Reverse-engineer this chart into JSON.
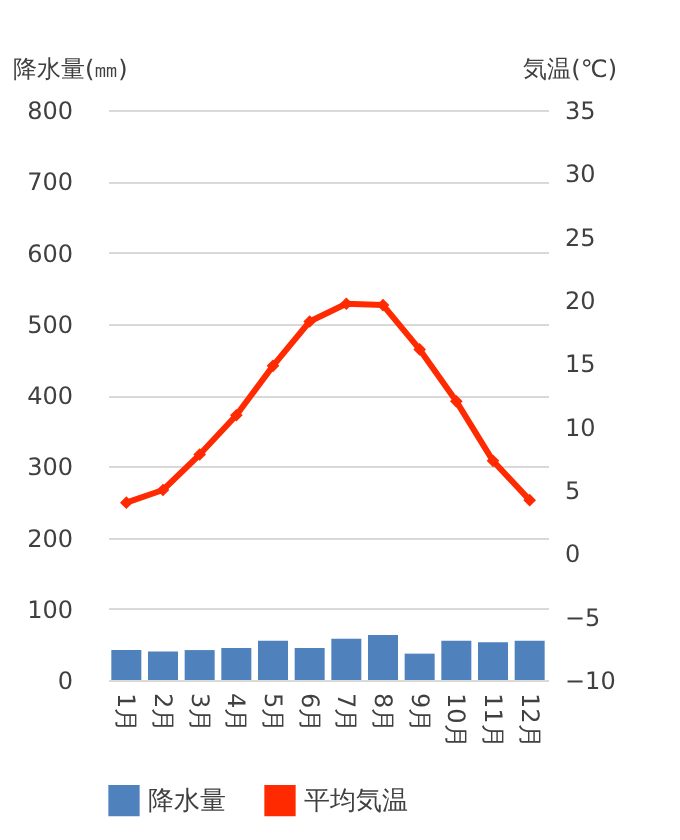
{
  "chart_data": {
    "type": "bar",
    "categories": [
      "1月",
      "2月",
      "3月",
      "4月",
      "5月",
      "6月",
      "7月",
      "8月",
      "9月",
      "10月",
      "11月",
      "12月"
    ],
    "series": [
      {
        "name": "降水量",
        "color": "#4f81bd",
        "values": [
          42,
          40,
          42,
          45,
          55,
          45,
          58,
          63,
          37,
          55,
          53,
          55
        ]
      },
      {
        "name": "平均気温",
        "type": "line",
        "axis": "y2",
        "color": "#ff2a00",
        "values": [
          4.0,
          5.0,
          7.8,
          10.9,
          14.8,
          18.3,
          19.7,
          19.6,
          16.1,
          12.0,
          7.3,
          4.2
        ]
      }
    ],
    "ylabel": "降水量(㎜)",
    "y2label": "気温(℃)",
    "ylim": [
      0,
      800
    ],
    "yticks": [
      0,
      100,
      200,
      300,
      400,
      500,
      600,
      700,
      800
    ],
    "y2lim": [
      -10,
      35
    ],
    "y2ticks": [
      -10,
      -5,
      0,
      5,
      10,
      15,
      20,
      25,
      30,
      35
    ],
    "grid": "y",
    "legend": "bottom",
    "marker": "diamond"
  }
}
